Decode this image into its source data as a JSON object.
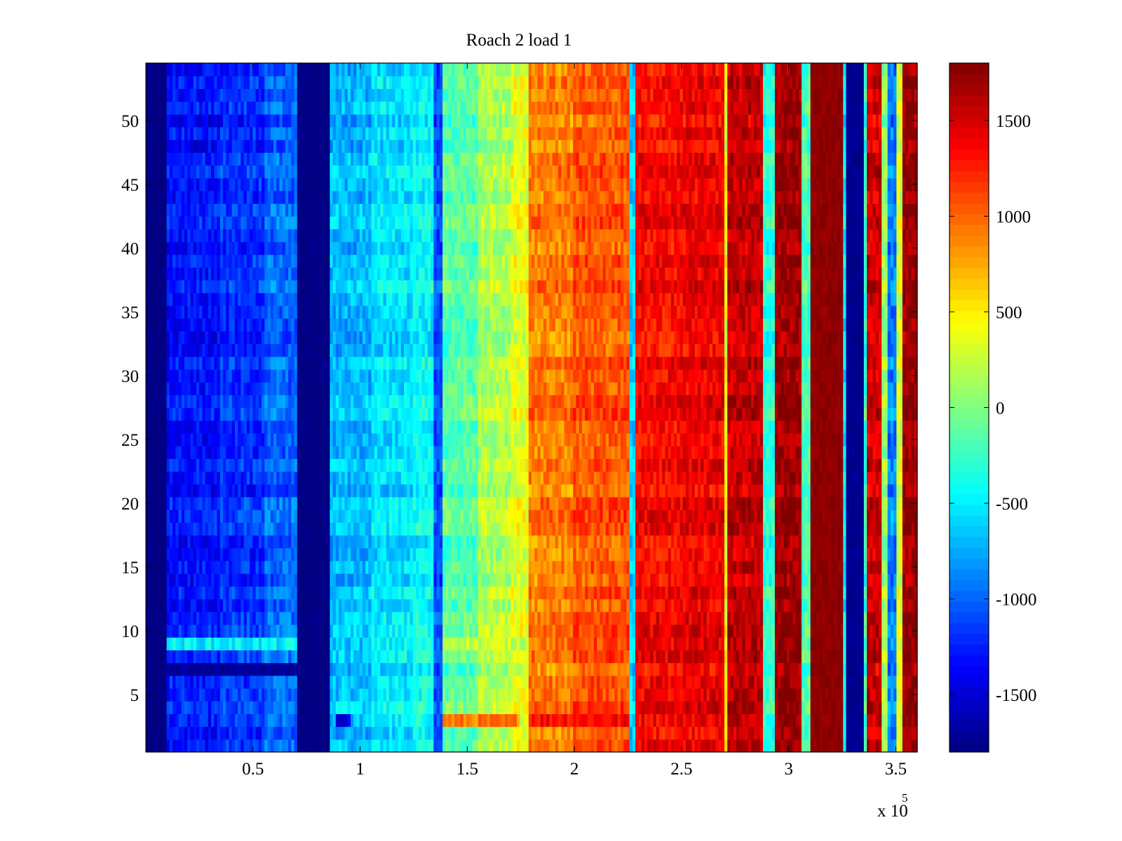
{
  "chart_data": {
    "type": "heatmap",
    "title": "Roach 2 load 1",
    "xlabel": "",
    "ylabel": "",
    "x_multiplier_label": "x 10",
    "x_multiplier_exponent": "5",
    "xlim": [
      0,
      360000
    ],
    "ylim": [
      0.5,
      54.5
    ],
    "rows": 54,
    "colormap": "jet",
    "clim": [
      -1800,
      1800
    ],
    "x_ticks": [
      {
        "value": 50000,
        "label": "0.5"
      },
      {
        "value": 100000,
        "label": "1"
      },
      {
        "value": 150000,
        "label": "1.5"
      },
      {
        "value": 200000,
        "label": "2"
      },
      {
        "value": 250000,
        "label": "2.5"
      },
      {
        "value": 300000,
        "label": "3"
      },
      {
        "value": 350000,
        "label": "3.5"
      }
    ],
    "y_ticks": [
      {
        "value": 5,
        "label": "5"
      },
      {
        "value": 10,
        "label": "10"
      },
      {
        "value": 15,
        "label": "15"
      },
      {
        "value": 20,
        "label": "20"
      },
      {
        "value": 25,
        "label": "25"
      },
      {
        "value": 30,
        "label": "30"
      },
      {
        "value": 35,
        "label": "35"
      },
      {
        "value": 40,
        "label": "40"
      },
      {
        "value": 45,
        "label": "45"
      },
      {
        "value": 50,
        "label": "50"
      }
    ],
    "colorbar_ticks": [
      {
        "value": -1500,
        "label": "-1500"
      },
      {
        "value": -1000,
        "label": "-1000"
      },
      {
        "value": -500,
        "label": "-500"
      },
      {
        "value": 0,
        "label": "0"
      },
      {
        "value": 500,
        "label": "500"
      },
      {
        "value": 1000,
        "label": "1000"
      },
      {
        "value": 1500,
        "label": "1500"
      }
    ],
    "column_profile": [
      {
        "x_start": 0,
        "x_end": 10000,
        "value": -1800
      },
      {
        "x_start": 10000,
        "x_end": 35000,
        "value": -1300
      },
      {
        "x_start": 35000,
        "x_end": 55000,
        "value": -1200
      },
      {
        "x_start": 55000,
        "x_end": 70000,
        "value": -1000
      },
      {
        "x_start": 70000,
        "x_end": 86000,
        "value": -1800
      },
      {
        "x_start": 86000,
        "x_end": 105000,
        "value": -700
      },
      {
        "x_start": 105000,
        "x_end": 125000,
        "value": -550
      },
      {
        "x_start": 125000,
        "x_end": 135000,
        "value": -450
      },
      {
        "x_start": 135000,
        "x_end": 138000,
        "value": -1100
      },
      {
        "x_start": 138000,
        "x_end": 155000,
        "value": -150
      },
      {
        "x_start": 155000,
        "x_end": 170000,
        "value": 150
      },
      {
        "x_start": 170000,
        "x_end": 178000,
        "value": 350
      },
      {
        "x_start": 178000,
        "x_end": 200000,
        "value": 900
      },
      {
        "x_start": 200000,
        "x_end": 226000,
        "value": 1050
      },
      {
        "x_start": 226000,
        "x_end": 229000,
        "value": -600
      },
      {
        "x_start": 229000,
        "x_end": 250000,
        "value": 1350
      },
      {
        "x_start": 250000,
        "x_end": 270000,
        "value": 1400
      },
      {
        "x_start": 270000,
        "x_end": 272000,
        "value": 400
      },
      {
        "x_start": 272000,
        "x_end": 288000,
        "value": 1550
      },
      {
        "x_start": 288000,
        "x_end": 293000,
        "value": -300
      },
      {
        "x_start": 293000,
        "x_end": 306000,
        "value": 1700
      },
      {
        "x_start": 306000,
        "x_end": 310000,
        "value": -200
      },
      {
        "x_start": 310000,
        "x_end": 325000,
        "value": 1750
      },
      {
        "x_start": 325000,
        "x_end": 327000,
        "value": -500
      },
      {
        "x_start": 327000,
        "x_end": 335000,
        "value": -1750
      },
      {
        "x_start": 335000,
        "x_end": 337000,
        "value": -300
      },
      {
        "x_start": 337000,
        "x_end": 343000,
        "value": 1500
      },
      {
        "x_start": 343000,
        "x_end": 346000,
        "value": 100
      },
      {
        "x_start": 346000,
        "x_end": 350000,
        "value": -900
      },
      {
        "x_start": 350000,
        "x_end": 353000,
        "value": 300
      },
      {
        "x_start": 353000,
        "x_end": 360000,
        "value": 1700
      }
    ],
    "row_anomalies": [
      {
        "row": 3,
        "x_start": 88000,
        "x_end": 96000,
        "value": -1500
      },
      {
        "row": 3,
        "x_start": 138000,
        "x_end": 175000,
        "value": 900
      },
      {
        "row": 3,
        "x_start": 178000,
        "x_end": 225000,
        "value": 1350
      },
      {
        "row": 9,
        "x_start": 10000,
        "x_end": 70000,
        "value": -500
      },
      {
        "row": 9,
        "x_start": 138000,
        "x_end": 178000,
        "value": 250
      },
      {
        "row": 7,
        "x_start": 10000,
        "x_end": 70000,
        "value": -1700
      }
    ]
  }
}
